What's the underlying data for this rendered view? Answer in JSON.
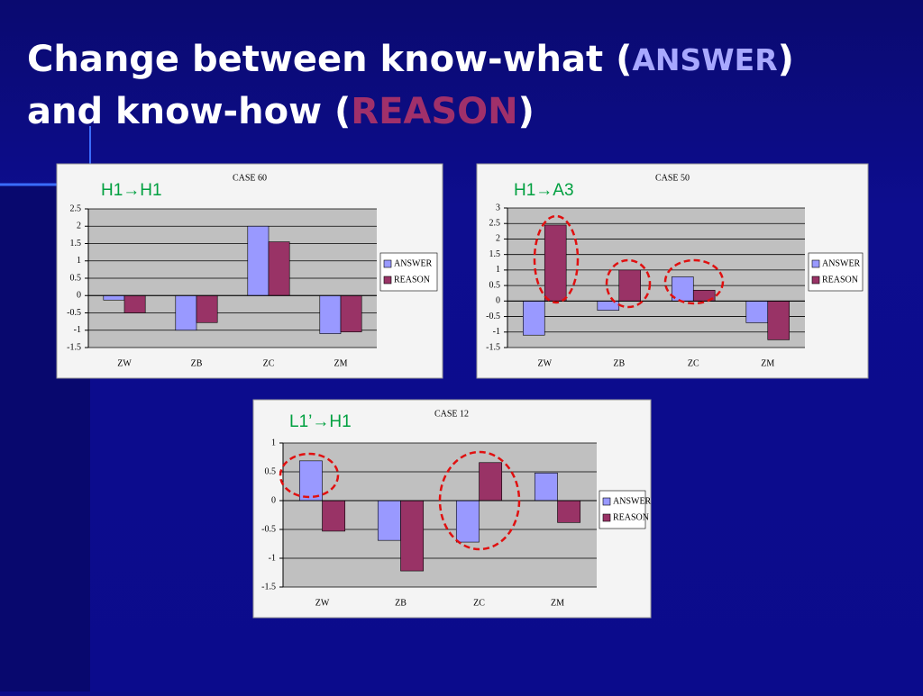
{
  "heading": [
    "Change between know-what (",
    "ANSWER",
    ")",
    "and know-how (",
    "REASON",
    ")"
  ],
  "chart_data": [
    {
      "type": "bar",
      "title": "CASE 60",
      "annotation": "H1→H1",
      "categories": [
        "ZW",
        "ZB",
        "ZC",
        "ZM"
      ],
      "series": [
        {
          "name": "ANSWER",
          "color": "#9999ff",
          "values": [
            -0.13,
            -1.0,
            2.0,
            -1.1
          ]
        },
        {
          "name": "REASON",
          "color": "#993366",
          "values": [
            -0.5,
            -0.78,
            1.55,
            -1.05
          ]
        }
      ],
      "ylim": [
        -1.5,
        2.5
      ],
      "yticks": [
        -1.5,
        -1,
        -0.5,
        0,
        0.5,
        1,
        1.5,
        2,
        2.5
      ],
      "grid": true,
      "legend": "right"
    },
    {
      "type": "bar",
      "title": "CASE 50",
      "annotation": "H1→A3",
      "categories": [
        "ZW",
        "ZB",
        "ZC",
        "ZM"
      ],
      "series": [
        {
          "name": "ANSWER",
          "color": "#9999ff",
          "values": [
            -1.1,
            -0.3,
            0.78,
            -0.7
          ]
        },
        {
          "name": "REASON",
          "color": "#993366",
          "values": [
            2.45,
            1.0,
            0.35,
            -1.25
          ]
        }
      ],
      "ylim": [
        -1.5,
        3
      ],
      "yticks": [
        -1.5,
        -1,
        -0.5,
        0,
        0.5,
        1,
        1.5,
        2,
        2.5,
        3
      ],
      "grid": true,
      "legend": "right"
    },
    {
      "type": "bar",
      "title": "CASE 12",
      "annotation": "L1’→H1",
      "categories": [
        "ZW",
        "ZB",
        "ZC",
        "ZM"
      ],
      "series": [
        {
          "name": "ANSWER",
          "color": "#9999ff",
          "values": [
            0.69,
            -0.69,
            -0.72,
            0.48
          ]
        },
        {
          "name": "REASON",
          "color": "#993366",
          "values": [
            -0.53,
            -1.22,
            0.66,
            -0.38
          ]
        }
      ],
      "ylim": [
        -1.5,
        1
      ],
      "yticks": [
        -1.5,
        -1,
        -0.5,
        0,
        0.5,
        1
      ],
      "grid": true,
      "legend": "right"
    }
  ]
}
